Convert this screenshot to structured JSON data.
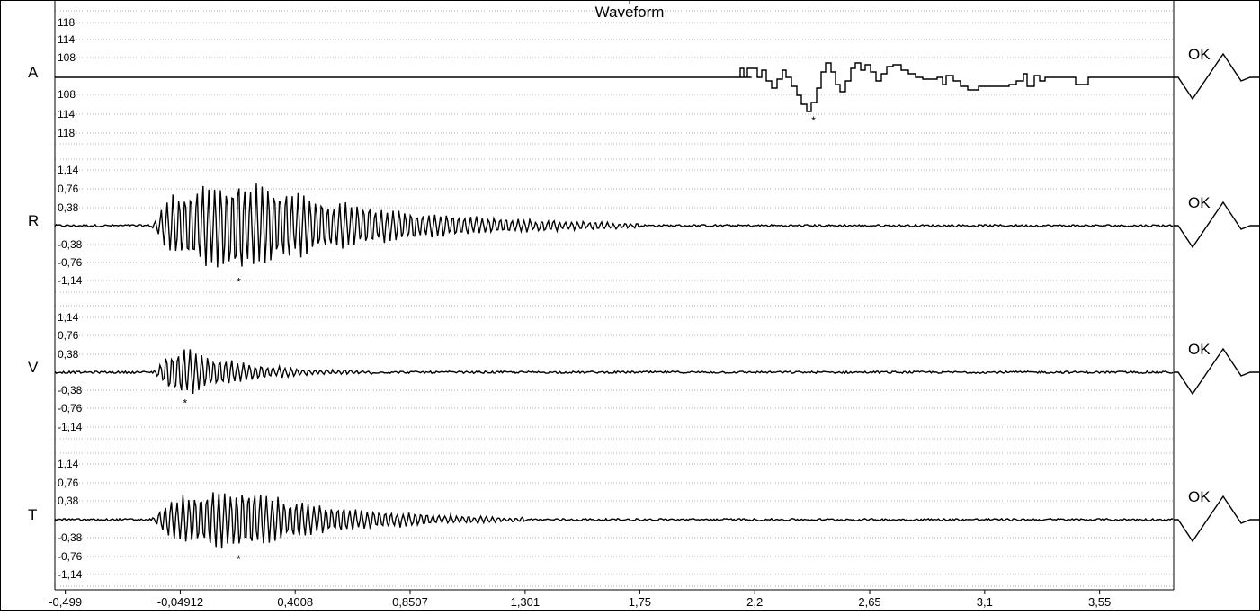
{
  "chart_data": {
    "type": "line",
    "title": "Waveform",
    "x_ticks": [
      "-0,499",
      "-0,04912",
      "0,4008",
      "0,8507",
      "1,301",
      "1,75",
      "2,2",
      "2,65",
      "3,1",
      "3,55"
    ],
    "x_tick_values": [
      -0.499,
      -0.04912,
      0.4008,
      0.8507,
      1.301,
      1.75,
      2.2,
      2.65,
      3.1,
      3.55
    ],
    "xlim": [
      -0.54,
      3.84
    ],
    "grid": true,
    "series": [
      {
        "name": "A",
        "ticks": [
          "118",
          "114",
          "108",
          "108",
          "114",
          "118"
        ],
        "status": "OK",
        "peak_marker": "*",
        "peak_x": 2.43,
        "active_range": [
          2.17,
          3.35
        ],
        "peak_relative_amplitude": 0.95
      },
      {
        "name": "R",
        "ticks": [
          "1,14",
          "0,76",
          "0,38",
          "-0,38",
          "-0,76",
          "-1,14"
        ],
        "status": "OK",
        "peak_marker": "*",
        "peak_x": 0.18,
        "active_range": [
          -0.16,
          1.75
        ],
        "peak_amplitude": 0.9
      },
      {
        "name": "V",
        "ticks": [
          "1,14",
          "0,76",
          "0,38",
          "-0,38",
          "-0,76",
          "-1,14"
        ],
        "status": "OK",
        "peak_marker": "*",
        "peak_x": -0.03,
        "active_range": [
          -0.16,
          0.7
        ],
        "peak_amplitude": 0.45
      },
      {
        "name": "T",
        "ticks": [
          "1,14",
          "0,76",
          "0,38",
          "-0,38",
          "-0,76",
          "-1,14"
        ],
        "status": "OK",
        "peak_marker": "*",
        "peak_x": 0.18,
        "active_range": [
          -0.16,
          1.3
        ],
        "peak_amplitude": 0.6
      }
    ]
  }
}
